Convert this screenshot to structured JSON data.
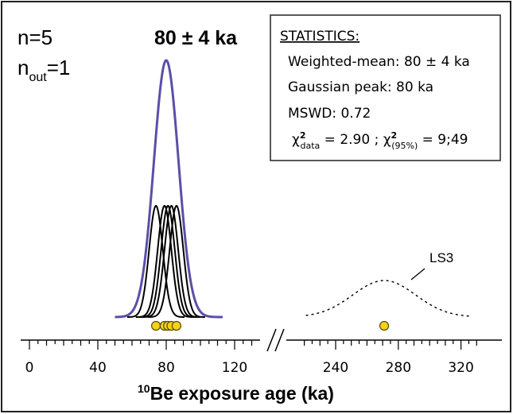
{
  "header": {
    "n_label": "n=5",
    "nout_main": "n",
    "nout_sub": "out",
    "nout_value": "=1",
    "peak_label": "80 ± 4 ka"
  },
  "stats": {
    "title": "STATISTICS:",
    "weighted_mean": "Weighted-mean: 80 ± 4 ka",
    "gaussian_peak": "Gaussian peak: 80 ka",
    "mswd": "MSWD: 0.72",
    "chi_symbol": "χ",
    "chi_sup": "2",
    "chi_data_sub": "data",
    "chi_data_value": " = 2.90 ; ",
    "chi_95_sub": "(95%)",
    "chi_95_value": " = 9;49"
  },
  "colors": {
    "summary_curve": "#5a4fa8",
    "sample_curves": "#000000",
    "points_fill": "#f2d21b",
    "points_stroke": "#5a4a00"
  },
  "chart_data": {
    "type": "line",
    "title": "",
    "xlabel_super": "10",
    "xlabel": "Be exposure age (ka)",
    "axis_break": true,
    "segments": [
      {
        "xlim": [
          0,
          130
        ],
        "ticks": [
          0,
          40,
          80,
          120
        ]
      },
      {
        "xlim": [
          215,
          330
        ],
        "ticks": [
          240,
          280,
          320
        ]
      }
    ],
    "samples": [
      {
        "age": 74,
        "sigma": 4
      },
      {
        "age": 79,
        "sigma": 4
      },
      {
        "age": 81,
        "sigma": 4
      },
      {
        "age": 83,
        "sigma": 4
      },
      {
        "age": 86,
        "sigma": 4
      }
    ],
    "summary": {
      "mean": 80,
      "sigma": 4,
      "peak_label": "80 ± 4 ka"
    },
    "outlier": {
      "name": "LS3",
      "age": 271,
      "sigma": 20
    },
    "n": 5,
    "n_out": 1
  }
}
